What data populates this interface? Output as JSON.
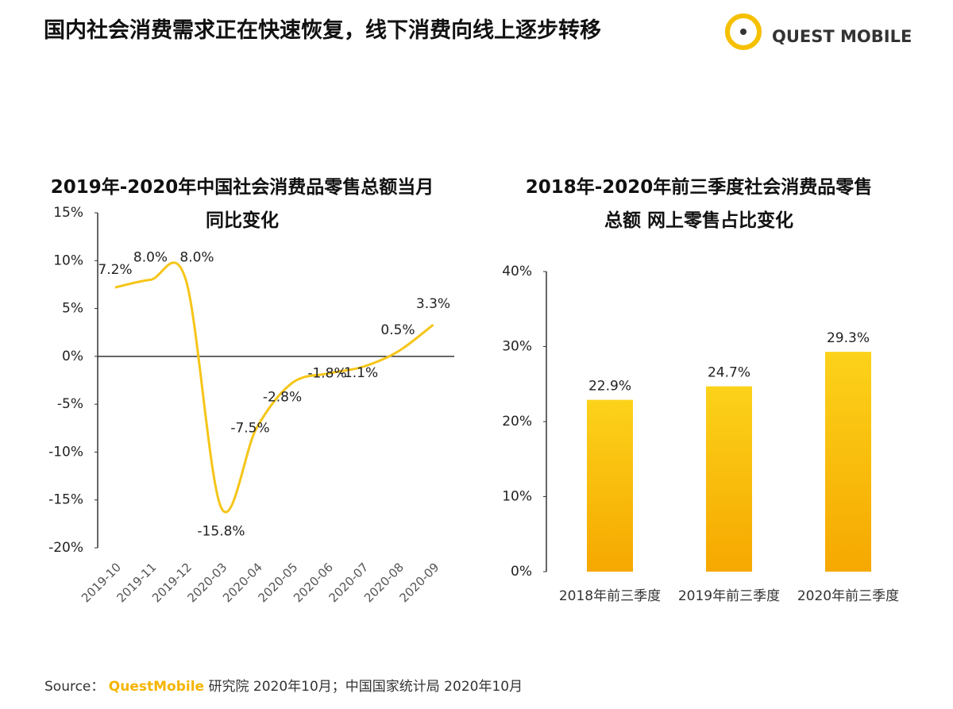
{
  "header": {
    "title": "国内社会消费需求正在快速恢复，线下消费向线上逐步转移",
    "logo": "QUEST MOBILE"
  },
  "chart_data": [
    {
      "type": "line",
      "title": "2019年-2020年中国社会消费品零售总额当月同比变化",
      "categories": [
        "2019-10",
        "2019-11",
        "2019-12",
        "2020-03",
        "2020-04",
        "2020-05",
        "2020-06",
        "2020-07",
        "2020-08",
        "2020-09"
      ],
      "values": [
        7.2,
        8.0,
        8.0,
        -15.8,
        -7.5,
        -2.8,
        -1.8,
        -1.1,
        0.5,
        3.3
      ],
      "value_labels": [
        "7.2%",
        "8.0%",
        "8.0%",
        "-15.8%",
        "-7.5%",
        "-2.8%",
        "-1.8%",
        "-1.1%",
        "0.5%",
        "3.3%"
      ],
      "color": "#f5c518",
      "ylim": [
        -20,
        15
      ],
      "yticks": [
        {
          "value": -20,
          "label": "-20%"
        },
        {
          "value": -15,
          "label": "-15%"
        },
        {
          "value": -10,
          "label": "-10%"
        },
        {
          "value": -5,
          "label": "-5%"
        },
        {
          "value": 0,
          "label": "0%"
        },
        {
          "value": 5,
          "label": "5%"
        },
        {
          "value": 10,
          "label": "10%"
        },
        {
          "value": 15,
          "label": "15%"
        }
      ]
    },
    {
      "type": "bar",
      "title": "2018年-2020年前三季度社会消费品零售总额 网上零售占比变化",
      "categories": [
        "2018年前三季度",
        "2019年前三季度",
        "2020年前三季度"
      ],
      "values": [
        22.9,
        24.7,
        29.3
      ],
      "value_labels": [
        "22.9%",
        "24.7%",
        "29.3%"
      ],
      "color": "#f9c20f",
      "ylim": [
        0,
        40
      ],
      "yticks": [
        {
          "value": 0,
          "label": "0%"
        },
        {
          "value": 10,
          "label": "10%"
        },
        {
          "value": 20,
          "label": "20%"
        },
        {
          "value": 30,
          "label": "30%"
        },
        {
          "value": 40,
          "label": "40%"
        }
      ]
    }
  ],
  "footer": {
    "prefix": "Source：",
    "brand": "QuestMobile",
    "text": "研究院 2020年10月；中国国家统计局 2020年10月"
  }
}
